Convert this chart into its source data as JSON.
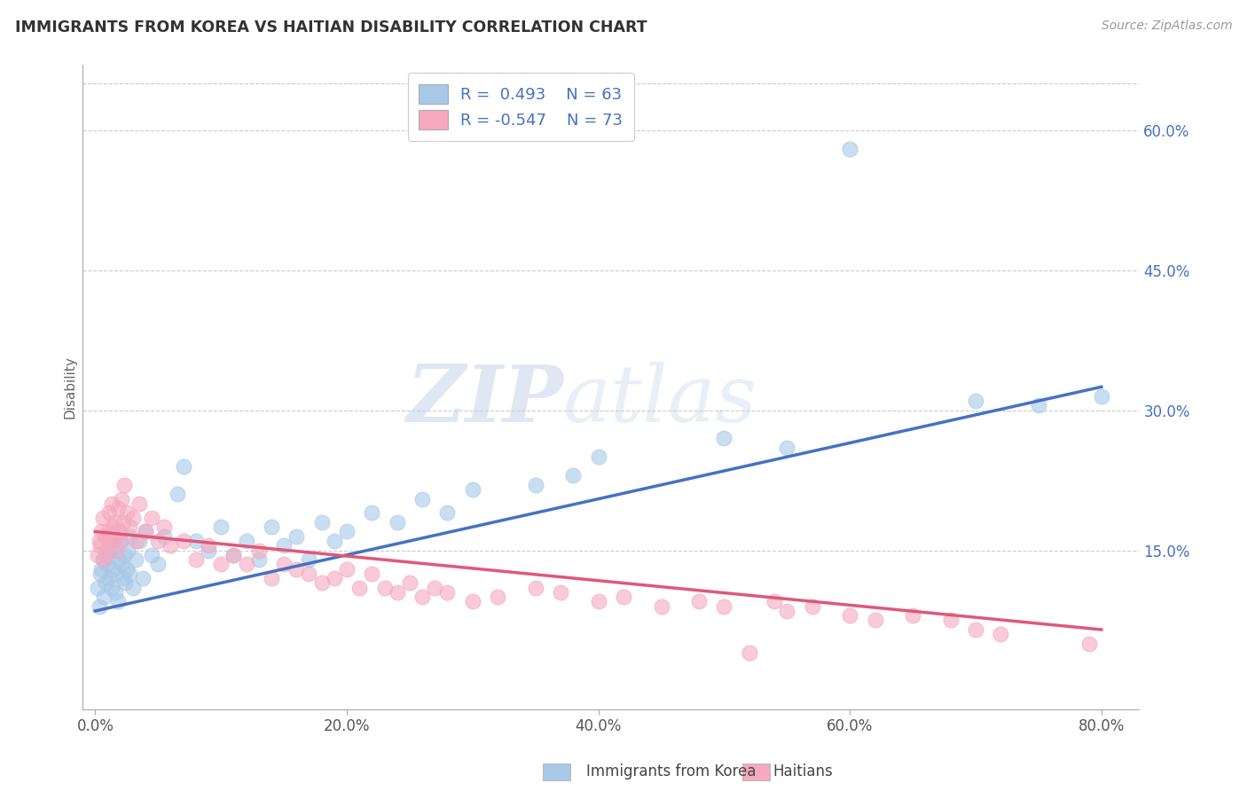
{
  "title": "IMMIGRANTS FROM KOREA VS HAITIAN DISABILITY CORRELATION CHART",
  "source": "Source: ZipAtlas.com",
  "xlabel_vals": [
    0.0,
    20.0,
    40.0,
    60.0,
    80.0
  ],
  "ylabel_vals": [
    15.0,
    30.0,
    45.0,
    60.0
  ],
  "xlim": [
    -1.0,
    83.0
  ],
  "ylim": [
    -2.0,
    67.0
  ],
  "korea_color": "#a8c8e8",
  "haitian_color": "#f5a8be",
  "korea_line_color": "#4472c4",
  "haitian_line_color": "#e05878",
  "korea_r": 0.493,
  "korea_n": 63,
  "haitian_r": -0.547,
  "haitian_n": 73,
  "legend_label_korea": "Immigrants from Korea",
  "legend_label_haitian": "Haitians",
  "ylabel_label": "Disability",
  "korea_x": [
    0.2,
    0.3,
    0.4,
    0.5,
    0.6,
    0.7,
    0.8,
    0.9,
    1.0,
    1.1,
    1.2,
    1.3,
    1.4,
    1.5,
    1.6,
    1.7,
    1.8,
    1.9,
    2.0,
    2.1,
    2.2,
    2.3,
    2.4,
    2.5,
    2.6,
    2.7,
    2.8,
    3.0,
    3.2,
    3.5,
    3.8,
    4.0,
    4.5,
    5.0,
    5.5,
    6.5,
    7.0,
    8.0,
    9.0,
    10.0,
    11.0,
    12.0,
    13.0,
    14.0,
    15.0,
    16.0,
    17.0,
    18.0,
    19.0,
    20.0,
    22.0,
    24.0,
    26.0,
    28.0,
    30.0,
    35.0,
    38.0,
    40.0,
    50.0,
    55.0,
    70.0,
    75.0,
    80.0
  ],
  "korea_y": [
    11.0,
    9.0,
    12.5,
    13.0,
    14.0,
    10.0,
    11.5,
    13.5,
    14.5,
    12.0,
    15.0,
    11.0,
    13.0,
    15.5,
    10.5,
    12.5,
    9.5,
    14.0,
    16.0,
    13.5,
    12.0,
    14.5,
    11.5,
    13.0,
    15.0,
    12.5,
    16.5,
    11.0,
    14.0,
    16.0,
    12.0,
    17.0,
    14.5,
    13.5,
    16.5,
    21.0,
    24.0,
    16.0,
    15.0,
    17.5,
    14.5,
    16.0,
    14.0,
    17.5,
    15.5,
    16.5,
    14.0,
    18.0,
    16.0,
    17.0,
    19.0,
    18.0,
    20.5,
    19.0,
    21.5,
    22.0,
    23.0,
    25.0,
    27.0,
    26.0,
    31.0,
    30.5,
    31.5
  ],
  "haitian_x": [
    0.2,
    0.3,
    0.4,
    0.5,
    0.6,
    0.7,
    0.8,
    0.9,
    1.0,
    1.1,
    1.2,
    1.3,
    1.4,
    1.5,
    1.6,
    1.7,
    1.8,
    1.9,
    2.0,
    2.1,
    2.2,
    2.3,
    2.5,
    2.7,
    3.0,
    3.3,
    3.5,
    4.0,
    4.5,
    5.0,
    5.5,
    6.0,
    7.0,
    8.0,
    9.0,
    10.0,
    11.0,
    12.0,
    13.0,
    14.0,
    15.0,
    16.0,
    17.0,
    18.0,
    19.0,
    20.0,
    21.0,
    22.0,
    23.0,
    24.0,
    25.0,
    26.0,
    27.0,
    28.0,
    30.0,
    32.0,
    35.0,
    37.0,
    40.0,
    42.0,
    45.0,
    48.0,
    50.0,
    54.0,
    55.0,
    57.0,
    60.0,
    62.0,
    65.0,
    68.0,
    70.0,
    72.0,
    79.0
  ],
  "haitian_y": [
    14.5,
    16.0,
    15.5,
    17.0,
    18.5,
    14.0,
    16.5,
    15.0,
    17.0,
    19.0,
    16.0,
    20.0,
    17.5,
    18.0,
    16.5,
    15.0,
    19.5,
    17.0,
    16.0,
    20.5,
    18.0,
    22.0,
    19.0,
    17.5,
    18.5,
    16.0,
    20.0,
    17.0,
    18.5,
    16.0,
    17.5,
    15.5,
    16.0,
    14.0,
    15.5,
    13.5,
    14.5,
    13.5,
    15.0,
    12.0,
    13.5,
    13.0,
    12.5,
    11.5,
    12.0,
    13.0,
    11.0,
    12.5,
    11.0,
    10.5,
    11.5,
    10.0,
    11.0,
    10.5,
    9.5,
    10.0,
    11.0,
    10.5,
    9.5,
    10.0,
    9.0,
    9.5,
    9.0,
    9.5,
    8.5,
    9.0,
    8.0,
    7.5,
    8.0,
    7.5,
    6.5,
    6.0,
    5.0
  ],
  "outlier_blue_x": 60.0,
  "outlier_blue_y": 58.0,
  "outlier_pink_x": 52.0,
  "outlier_pink_y": 4.0,
  "korea_line_x0": 0.0,
  "korea_line_y0": 8.5,
  "korea_line_x1": 80.0,
  "korea_line_y1": 32.5,
  "haitian_line_x0": 0.0,
  "haitian_line_y0": 17.0,
  "haitian_line_x1": 80.0,
  "haitian_line_y1": 6.5
}
